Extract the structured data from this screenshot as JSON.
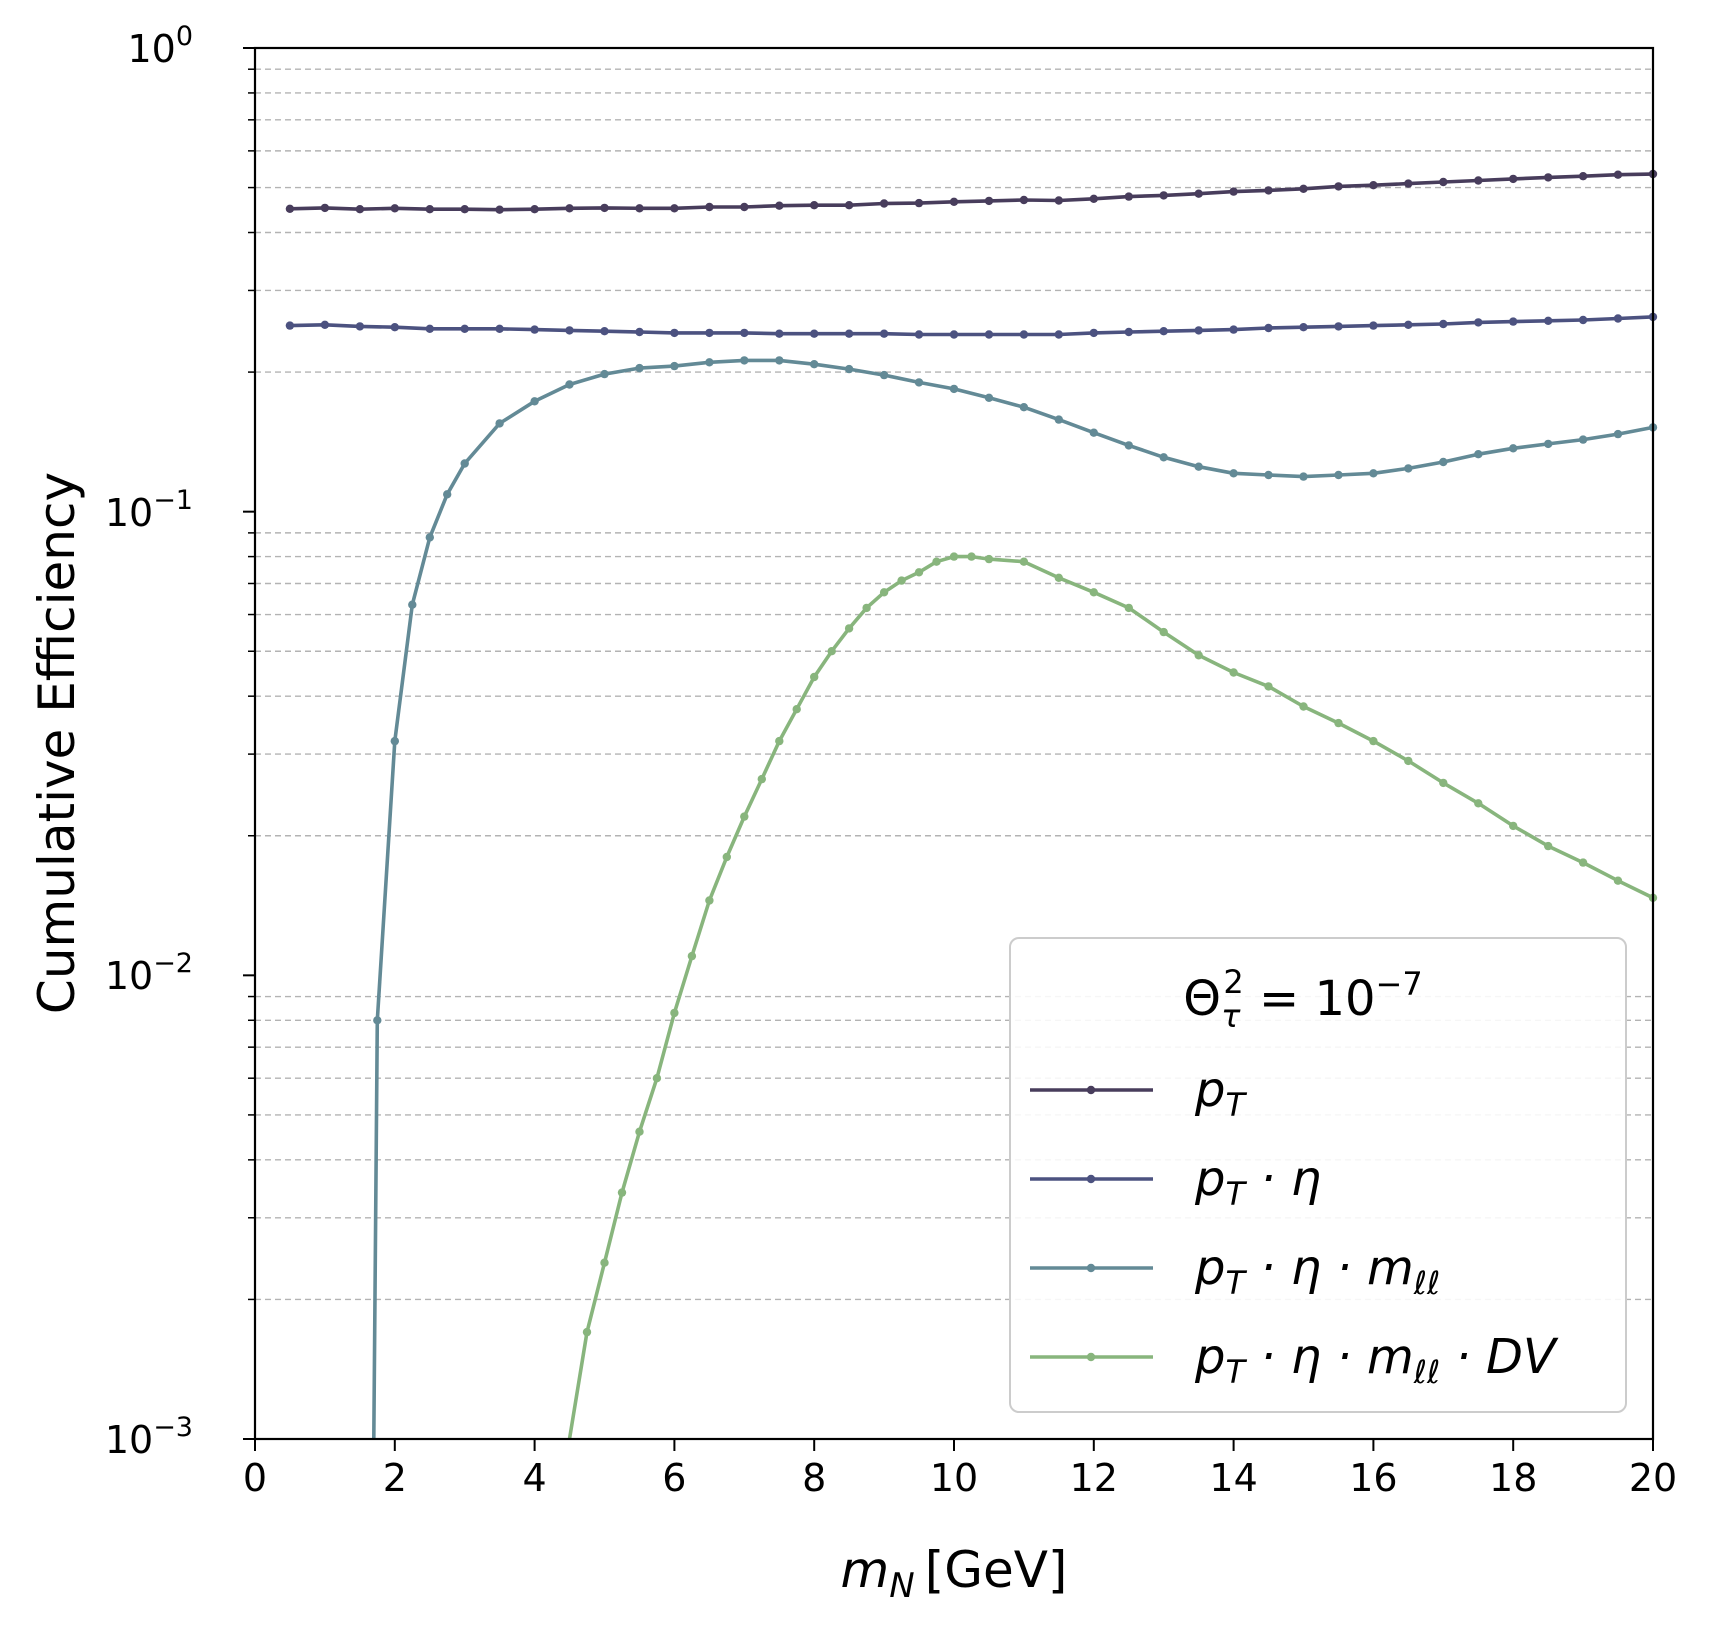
{
  "chart_data": {
    "type": "line",
    "title": "",
    "xlabel_var": "m",
    "xlabel_sub": "N",
    "xlabel_unit": "[GeV]",
    "ylabel": "Cumulative Efficiency",
    "xscale": "linear",
    "yscale": "log",
    "xlim": [
      0,
      20
    ],
    "ylim": [
      0.001,
      1
    ],
    "x_ticks": [
      "0",
      "2",
      "4",
      "6",
      "8",
      "10",
      "12",
      "14",
      "16",
      "18",
      "20"
    ],
    "y_ticks": [
      {
        "base": "10",
        "exp": "0"
      },
      {
        "base": "10",
        "exp": "−1"
      },
      {
        "base": "10",
        "exp": "−2"
      },
      {
        "base": "10",
        "exp": "−3"
      }
    ],
    "grid": "horizontal dashed at major and minor y ticks",
    "legend": {
      "placement": "lower-right",
      "title": "Θτ² = 10⁻⁷",
      "title_base": "Θ",
      "title_sub": "τ",
      "title_sup": "2",
      "title_rhs": " = 10",
      "title_exp": "−7"
    },
    "series": [
      {
        "name": "pT",
        "label_parts": [
          "p",
          "T",
          ""
        ],
        "color": "#483d5c",
        "points": [
          [
            0.5,
            0.45
          ],
          [
            1,
            0.452
          ],
          [
            1.5,
            0.449
          ],
          [
            2,
            0.451
          ],
          [
            2.5,
            0.449
          ],
          [
            3,
            0.449
          ],
          [
            3.5,
            0.448
          ],
          [
            4,
            0.449
          ],
          [
            4.5,
            0.451
          ],
          [
            5,
            0.452
          ],
          [
            5.5,
            0.451
          ],
          [
            6,
            0.451
          ],
          [
            6.5,
            0.454
          ],
          [
            7,
            0.454
          ],
          [
            7.5,
            0.457
          ],
          [
            8,
            0.458
          ],
          [
            8.5,
            0.458
          ],
          [
            9,
            0.462
          ],
          [
            9.5,
            0.463
          ],
          [
            10,
            0.466
          ],
          [
            10.5,
            0.468
          ],
          [
            11,
            0.47
          ],
          [
            11.5,
            0.469
          ],
          [
            12,
            0.473
          ],
          [
            12.5,
            0.478
          ],
          [
            13,
            0.481
          ],
          [
            13.5,
            0.485
          ],
          [
            14,
            0.49
          ],
          [
            14.5,
            0.493
          ],
          [
            15,
            0.497
          ],
          [
            15.5,
            0.503
          ],
          [
            16,
            0.506
          ],
          [
            16.5,
            0.51
          ],
          [
            17,
            0.514
          ],
          [
            17.5,
            0.518
          ],
          [
            18,
            0.522
          ],
          [
            18.5,
            0.526
          ],
          [
            19,
            0.529
          ],
          [
            19.5,
            0.533
          ],
          [
            20,
            0.535
          ]
        ]
      },
      {
        "name": "pT · η",
        "label_parts": [
          "p",
          "T",
          " · η"
        ],
        "color": "#4c5280",
        "points": [
          [
            0.5,
            0.252
          ],
          [
            1,
            0.253
          ],
          [
            1.5,
            0.251
          ],
          [
            2,
            0.25
          ],
          [
            2.5,
            0.248
          ],
          [
            3,
            0.248
          ],
          [
            3.5,
            0.248
          ],
          [
            4,
            0.247
          ],
          [
            4.5,
            0.246
          ],
          [
            5,
            0.245
          ],
          [
            5.5,
            0.244
          ],
          [
            6,
            0.243
          ],
          [
            6.5,
            0.243
          ],
          [
            7,
            0.243
          ],
          [
            7.5,
            0.242
          ],
          [
            8,
            0.242
          ],
          [
            8.5,
            0.242
          ],
          [
            9,
            0.242
          ],
          [
            9.5,
            0.241
          ],
          [
            10,
            0.241
          ],
          [
            10.5,
            0.241
          ],
          [
            11,
            0.241
          ],
          [
            11.5,
            0.241
          ],
          [
            12,
            0.243
          ],
          [
            12.5,
            0.244
          ],
          [
            13,
            0.245
          ],
          [
            13.5,
            0.246
          ],
          [
            14,
            0.247
          ],
          [
            14.5,
            0.249
          ],
          [
            15,
            0.25
          ],
          [
            15.5,
            0.251
          ],
          [
            16,
            0.252
          ],
          [
            16.5,
            0.253
          ],
          [
            17,
            0.254
          ],
          [
            17.5,
            0.256
          ],
          [
            18,
            0.257
          ],
          [
            18.5,
            0.258
          ],
          [
            19,
            0.259
          ],
          [
            19.5,
            0.261
          ],
          [
            20,
            0.263
          ]
        ]
      },
      {
        "name": "pT · η · mℓℓ",
        "label_parts": [
          "p",
          "T",
          " · η · m",
          "ℓℓ"
        ],
        "color": "#638a96",
        "points": [
          [
            1.7,
            0.001
          ],
          [
            1.75,
            0.008
          ],
          [
            2,
            0.032
          ],
          [
            2.25,
            0.063
          ],
          [
            2.5,
            0.088
          ],
          [
            2.75,
            0.109
          ],
          [
            3,
            0.127
          ],
          [
            3.5,
            0.155
          ],
          [
            4,
            0.173
          ],
          [
            4.5,
            0.188
          ],
          [
            5,
            0.198
          ],
          [
            5.5,
            0.204
          ],
          [
            6,
            0.206
          ],
          [
            6.5,
            0.21
          ],
          [
            7,
            0.212
          ],
          [
            7.5,
            0.212
          ],
          [
            8,
            0.208
          ],
          [
            8.5,
            0.203
          ],
          [
            9,
            0.197
          ],
          [
            9.5,
            0.19
          ],
          [
            10,
            0.184
          ],
          [
            10.5,
            0.176
          ],
          [
            11,
            0.168
          ],
          [
            11.5,
            0.158
          ],
          [
            12,
            0.148
          ],
          [
            12.5,
            0.139
          ],
          [
            13,
            0.131
          ],
          [
            13.5,
            0.125
          ],
          [
            14,
            0.121
          ],
          [
            14.5,
            0.12
          ],
          [
            15,
            0.119
          ],
          [
            15.5,
            0.12
          ],
          [
            16,
            0.121
          ],
          [
            16.5,
            0.124
          ],
          [
            17,
            0.128
          ],
          [
            17.5,
            0.133
          ],
          [
            18,
            0.137
          ],
          [
            18.5,
            0.14
          ],
          [
            19,
            0.143
          ],
          [
            19.5,
            0.147
          ],
          [
            20,
            0.152
          ]
        ]
      },
      {
        "name": "pT · η · mℓℓ · DV",
        "label_parts": [
          "p",
          "T",
          " · η · m",
          "ℓℓ",
          " · DV"
        ],
        "color": "#88b57d",
        "points": [
          [
            4.5,
            0.001
          ],
          [
            4.75,
            0.0017
          ],
          [
            5,
            0.0024
          ],
          [
            5.25,
            0.0034
          ],
          [
            5.5,
            0.0046
          ],
          [
            5.75,
            0.006
          ],
          [
            6,
            0.0083
          ],
          [
            6.25,
            0.011
          ],
          [
            6.5,
            0.0145
          ],
          [
            6.75,
            0.018
          ],
          [
            7,
            0.022
          ],
          [
            7.25,
            0.0265
          ],
          [
            7.5,
            0.032
          ],
          [
            7.75,
            0.0375
          ],
          [
            8,
            0.044
          ],
          [
            8.25,
            0.05
          ],
          [
            8.5,
            0.056
          ],
          [
            8.75,
            0.062
          ],
          [
            9,
            0.067
          ],
          [
            9.25,
            0.071
          ],
          [
            9.5,
            0.074
          ],
          [
            9.75,
            0.078
          ],
          [
            10,
            0.08
          ],
          [
            10.25,
            0.08
          ],
          [
            10.5,
            0.079
          ],
          [
            11,
            0.078
          ],
          [
            11.5,
            0.072
          ],
          [
            12,
            0.067
          ],
          [
            12.5,
            0.062
          ],
          [
            13,
            0.055
          ],
          [
            13.5,
            0.049
          ],
          [
            14,
            0.045
          ],
          [
            14.5,
            0.042
          ],
          [
            15,
            0.038
          ],
          [
            15.5,
            0.035
          ],
          [
            16,
            0.032
          ],
          [
            16.5,
            0.029
          ],
          [
            17,
            0.026
          ],
          [
            17.5,
            0.0235
          ],
          [
            18,
            0.021
          ],
          [
            18.5,
            0.019
          ],
          [
            19,
            0.0175
          ],
          [
            19.5,
            0.016
          ],
          [
            20,
            0.0147
          ]
        ]
      }
    ]
  }
}
